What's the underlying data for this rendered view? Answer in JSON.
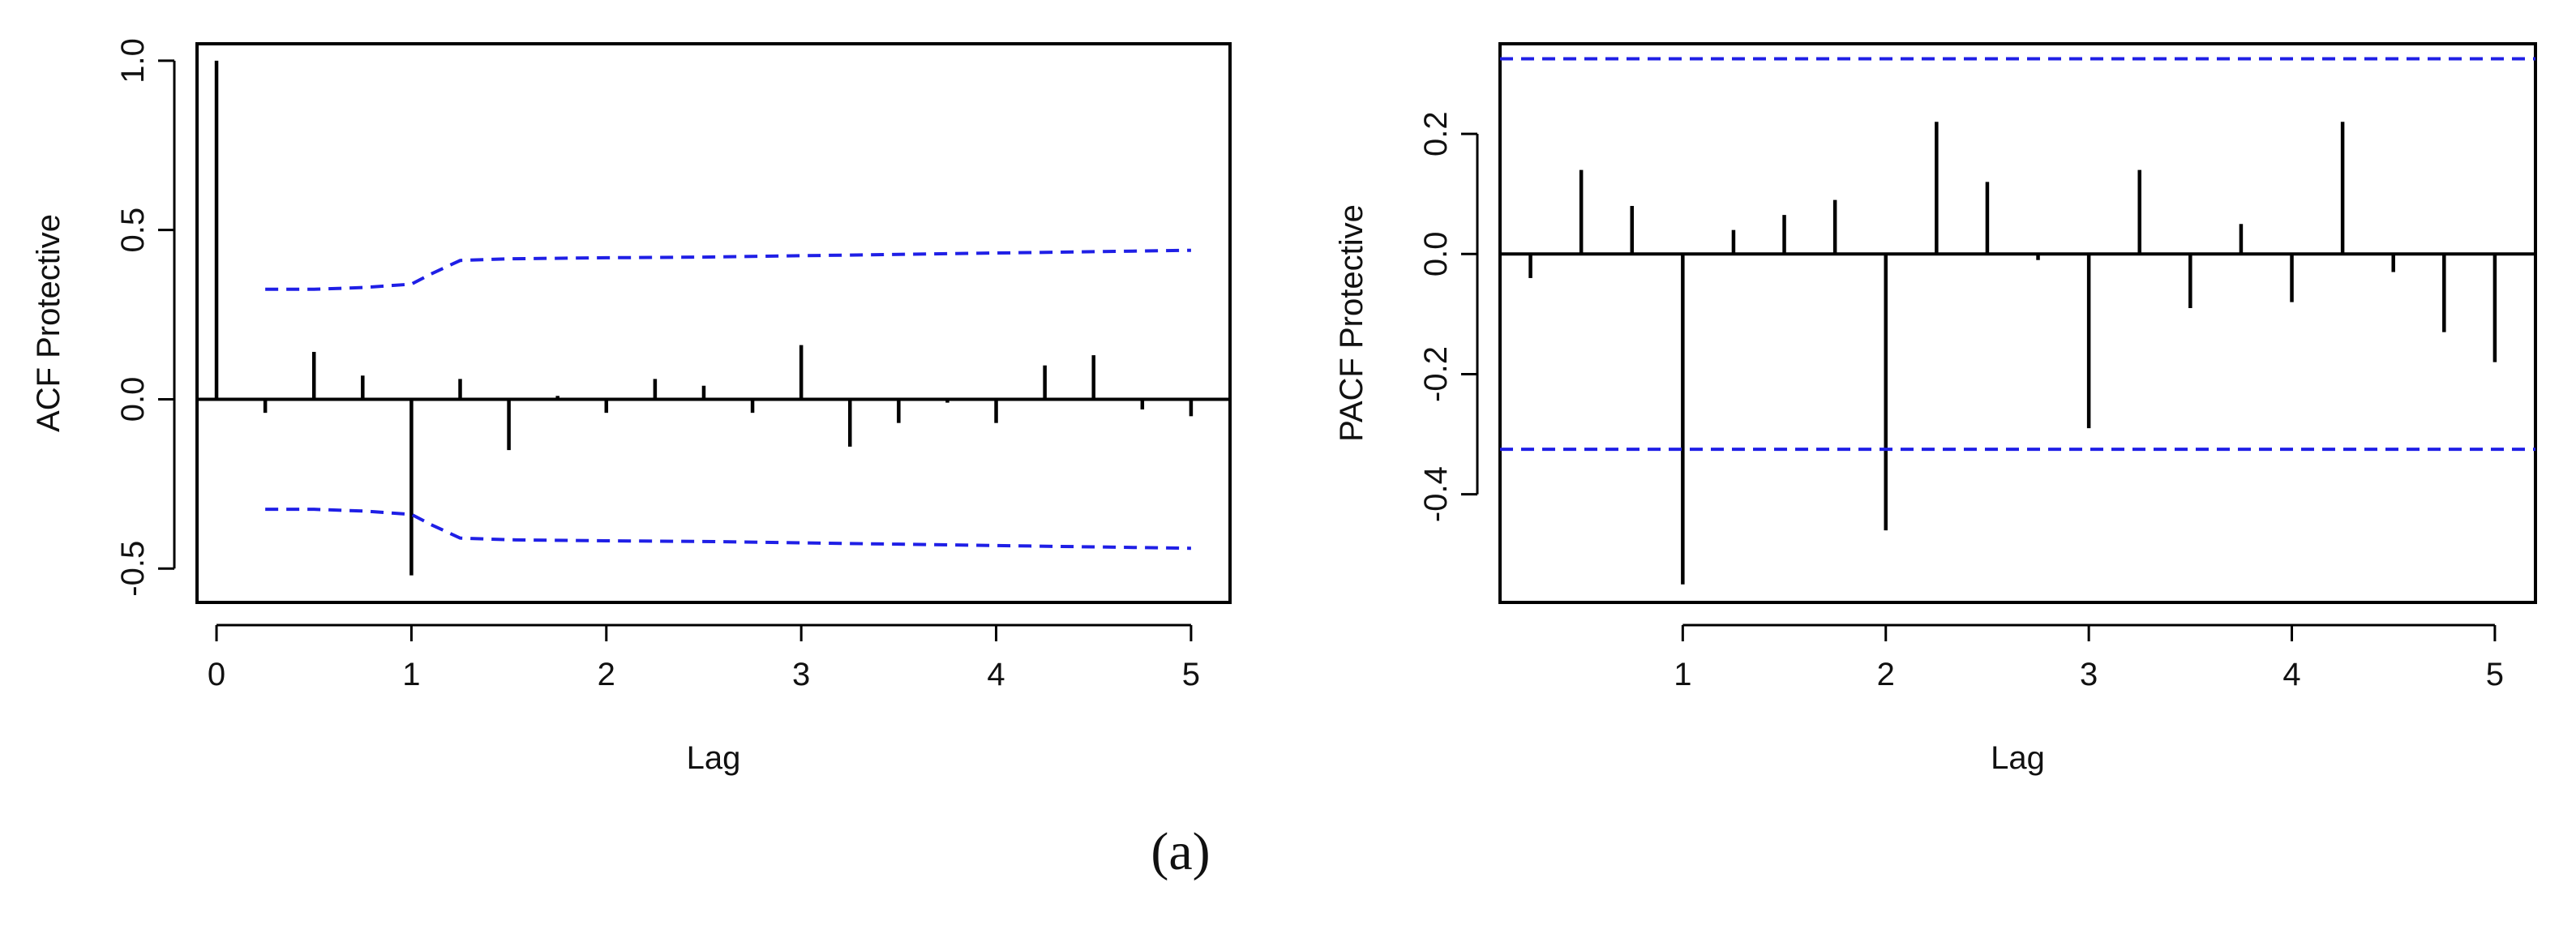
{
  "caption": "(a)",
  "colors": {
    "spike": "#000000",
    "conf": "#1f1fe6"
  },
  "chart_data": [
    {
      "type": "bar",
      "subtype": "acf",
      "xlabel": "Lag",
      "ylabel": "ACF Protective",
      "xlim": [
        -0.1,
        5.2
      ],
      "ylim": [
        -0.6,
        1.05
      ],
      "xticks": [
        0,
        1,
        2,
        3,
        4,
        5
      ],
      "yticks": [
        -0.5,
        0.0,
        0.5,
        1.0
      ],
      "ytick_labels": [
        "-0.5",
        "0.0",
        "0.5",
        "1.0"
      ],
      "lags": [
        0,
        0.25,
        0.5,
        0.75,
        1,
        1.25,
        1.5,
        1.75,
        2,
        2.25,
        2.5,
        2.75,
        3,
        3.25,
        3.5,
        3.75,
        4,
        4.25,
        4.5,
        4.75,
        5
      ],
      "values": [
        1.0,
        -0.04,
        0.14,
        0.07,
        -0.52,
        0.06,
        -0.15,
        0.01,
        -0.04,
        0.06,
        0.04,
        -0.04,
        0.16,
        -0.14,
        -0.07,
        -0.01,
        -0.07,
        0.1,
        0.13,
        -0.03,
        -0.05
      ],
      "conf_band": {
        "lags": [
          0.25,
          0.5,
          0.75,
          1.0,
          1.1,
          1.25,
          1.5,
          2.0,
          2.5,
          3.0,
          3.5,
          4.0,
          4.5,
          5.0
        ],
        "upper": [
          0.325,
          0.325,
          0.33,
          0.34,
          0.37,
          0.41,
          0.415,
          0.418,
          0.42,
          0.424,
          0.428,
          0.432,
          0.436,
          0.44
        ],
        "lower": [
          -0.325,
          -0.325,
          -0.33,
          -0.34,
          -0.37,
          -0.41,
          -0.415,
          -0.418,
          -0.42,
          -0.424,
          -0.428,
          -0.432,
          -0.436,
          -0.44
        ]
      }
    },
    {
      "type": "bar",
      "subtype": "pacf",
      "xlabel": "Lag",
      "ylabel": "PACF Protective",
      "xlim": [
        0.1,
        5.2
      ],
      "ylim": [
        -0.58,
        0.35
      ],
      "xticks": [
        1,
        2,
        3,
        4,
        5
      ],
      "yticks": [
        -0.4,
        -0.2,
        0.0,
        0.2
      ],
      "ytick_labels": [
        "-0.4",
        "-0.2",
        "0.0",
        "0.2"
      ],
      "lags": [
        0.25,
        0.5,
        0.75,
        1,
        1.25,
        1.5,
        1.75,
        2,
        2.25,
        2.5,
        2.75,
        3,
        3.25,
        3.5,
        3.75,
        4,
        4.25,
        4.5,
        4.75,
        5
      ],
      "values": [
        -0.04,
        0.14,
        0.08,
        -0.55,
        0.04,
        0.065,
        0.09,
        -0.46,
        0.22,
        0.12,
        -0.01,
        -0.29,
        0.14,
        -0.09,
        0.05,
        -0.08,
        0.22,
        -0.03,
        -0.13,
        -0.18
      ],
      "conf_band": {
        "upper": 0.325,
        "lower": -0.325
      }
    }
  ]
}
